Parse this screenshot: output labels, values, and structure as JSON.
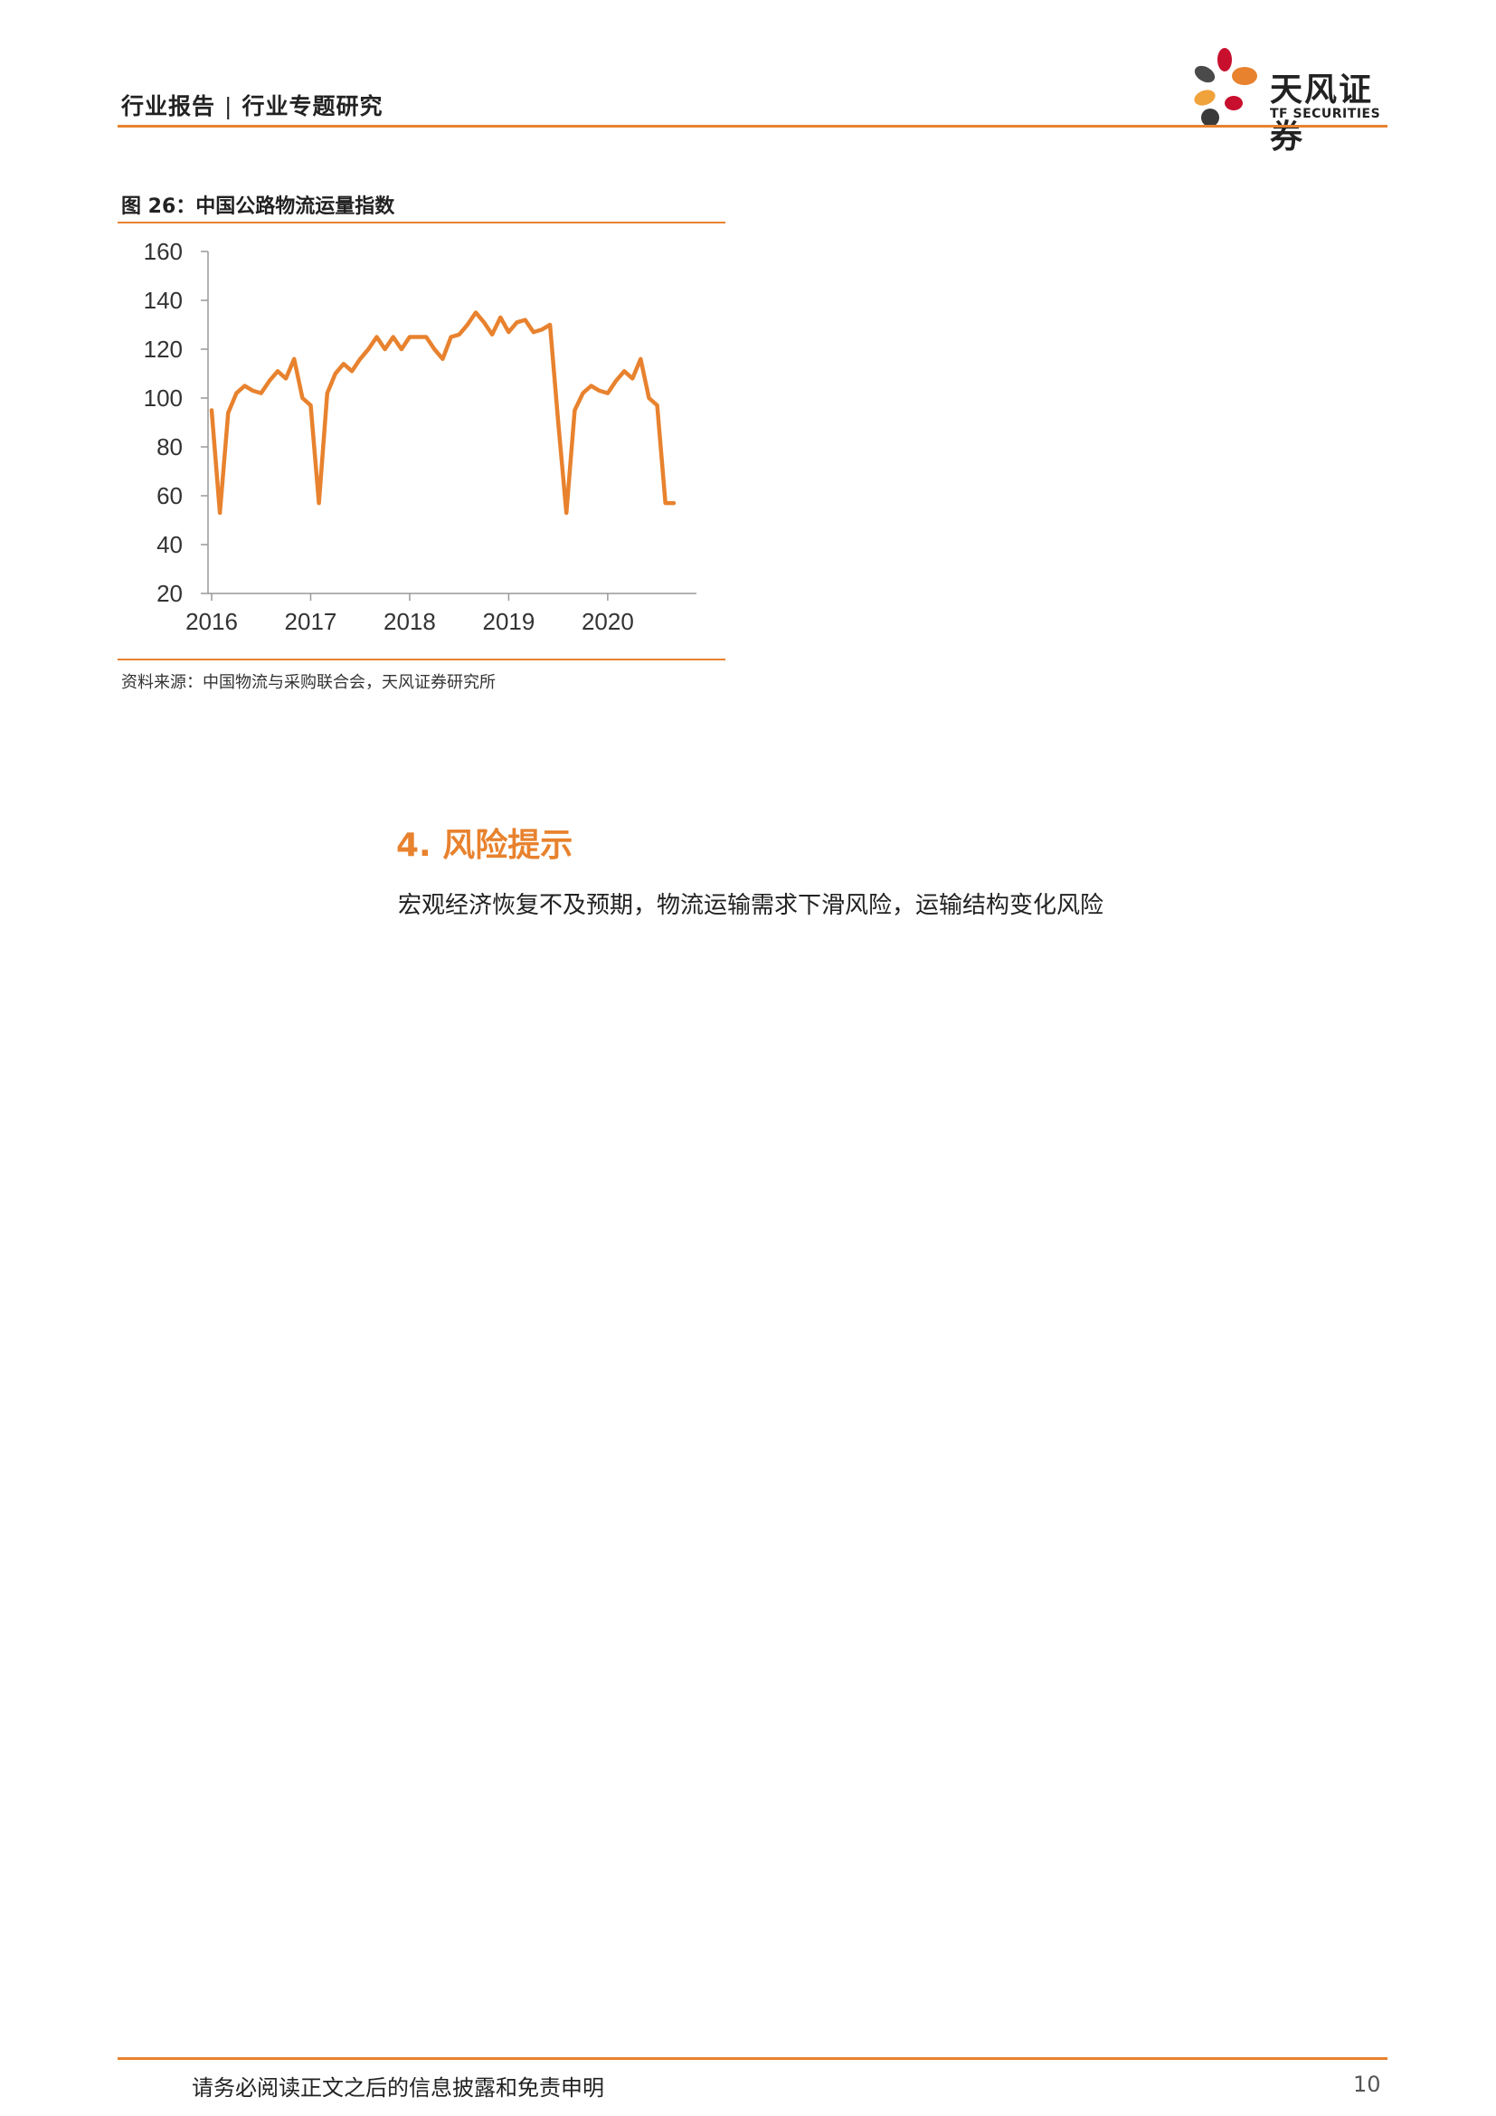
{
  "header": {
    "category": "行业报告",
    "separator": "|",
    "subcategory": "行业专题研究"
  },
  "logo": {
    "name_cn": "天风证券",
    "name_en": "TF SECURITIES",
    "petal_colors": [
      "#c8102e",
      "#e8822e",
      "#f0a23b",
      "#4a4a4a",
      "#3a3a3a"
    ]
  },
  "figure": {
    "title": "图 26：中国公路物流运量指数",
    "source": "资料来源：中国物流与采购联合会，天风证券研究所"
  },
  "chart_data": {
    "type": "line",
    "title": "",
    "xlabel": "",
    "ylabel": "",
    "color": "#e8822e",
    "ylim": [
      20,
      160
    ],
    "yticks": [
      20,
      40,
      60,
      80,
      100,
      120,
      140,
      160
    ],
    "xlim": [
      2016.0,
      2020.75
    ],
    "xticks": [
      "2016",
      "2017",
      "2018",
      "2019",
      "2020"
    ],
    "series": [
      {
        "x": [
          2016.0,
          2016.083,
          2016.167,
          2016.25,
          2016.333,
          2016.417,
          2016.5,
          2016.583,
          2016.667,
          2016.75,
          2016.833,
          2016.917,
          2017.0,
          2017.083,
          2017.167,
          2017.25,
          2017.333,
          2017.417,
          2017.5,
          2017.583,
          2017.667,
          2017.75,
          2017.833,
          2017.917,
          2018.0,
          2018.083,
          2018.167,
          2018.25,
          2018.333,
          2018.417,
          2018.5,
          2018.583,
          2018.667,
          2018.75,
          2018.833,
          2018.917,
          2019.0,
          2019.083,
          2019.167,
          2019.25,
          2019.333,
          2019.417,
          2019.5,
          2019.583,
          2019.667,
          2019.75,
          2019.833,
          2019.917,
          2020.0,
          2020.083,
          2020.167,
          2020.25,
          2020.333,
          2020.417,
          2020.5,
          2020.583,
          2020.667
        ],
        "values": [
          95,
          53,
          94,
          102,
          105,
          103,
          102,
          107,
          111,
          108,
          116,
          100,
          97,
          57,
          102,
          110,
          114,
          111,
          116,
          120,
          125,
          120,
          125,
          120,
          125,
          125,
          125,
          120,
          116,
          125,
          126,
          130,
          135,
          131,
          126,
          133,
          127,
          131,
          132,
          127,
          128,
          130,
          90,
          53,
          95,
          102,
          105,
          103,
          102,
          107,
          111,
          108,
          116,
          100,
          97,
          57,
          57
        ]
      }
    ]
  },
  "section": {
    "heading": "4. 风险提示",
    "body": "宏观经济恢复不及预期，物流运输需求下滑风险，运输结构变化风险"
  },
  "footer": {
    "disclaimer": "请务必阅读正文之后的信息披露和免责申明",
    "page_number": "10"
  }
}
